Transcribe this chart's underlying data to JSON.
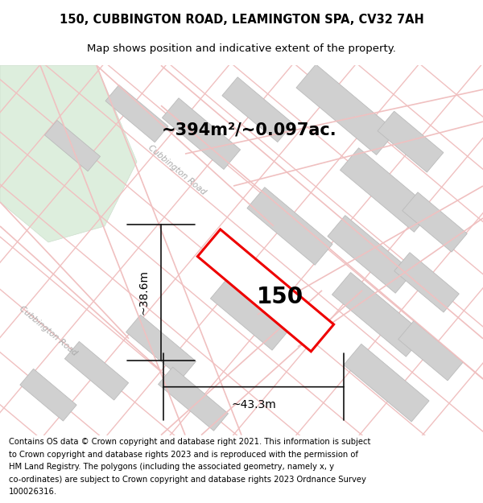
{
  "title_line1": "150, CUBBINGTON ROAD, LEAMINGTON SPA, CV32 7AH",
  "title_line2": "Map shows position and indicative extent of the property.",
  "area_label": "~394m²/~0.097ac.",
  "property_number": "150",
  "dim_width": "~43.3m",
  "dim_height": "~38.6m",
  "footer_lines": [
    "Contains OS data © Crown copyright and database right 2021. This information is subject",
    "to Crown copyright and database rights 2023 and is reproduced with the permission of",
    "HM Land Registry. The polygons (including the associated geometry, namely x, y",
    "co-ordinates) are subject to Crown copyright and database rights 2023 Ordnance Survey",
    "100026316."
  ],
  "map_bg": "#ececec",
  "stripe_color": "#f0c0c0",
  "building_color": "#d0d0d0",
  "building_edge": "#bbbbbb",
  "green_color": "#ddeedd",
  "green_edge": "#ccddcc",
  "property_fill": "#ffffff",
  "property_edge": "#ee0000",
  "road_label_color": "#aaaaaa",
  "dim_color": "#111111",
  "title_fontsize": 10.5,
  "subtitle_fontsize": 9.5,
  "area_fontsize": 15,
  "number_fontsize": 20,
  "dim_fontsize": 10,
  "footer_fontsize": 7.2,
  "road_label_fontsize": 7.5
}
